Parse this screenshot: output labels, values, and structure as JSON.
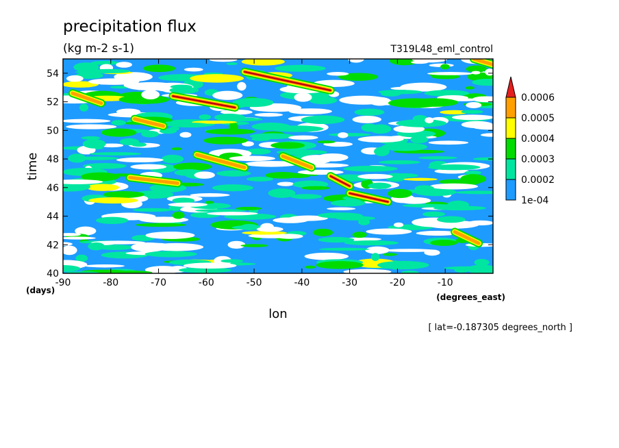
{
  "chart_data": {
    "type": "heatmap",
    "title": "precipitation flux",
    "units": "(kg m-2 s-1)",
    "experiment": "T319L48_eml_control",
    "xlabel": "lon",
    "x_unit": "(degrees_east)",
    "ylabel": "time",
    "y_unit": "(days)",
    "footnote": "[ lat=-0.187305 degrees_north ]",
    "xlim": [
      -90,
      0
    ],
    "ylim": [
      40,
      55
    ],
    "x_ticks": [
      -90,
      -80,
      -70,
      -60,
      -50,
      -40,
      -30,
      -20,
      -10
    ],
    "x_tick_labels": [
      "-90",
      "-80",
      "-70",
      "-60",
      "-50",
      "-40",
      "-30",
      "-20",
      "-10"
    ],
    "y_ticks": [
      40,
      42,
      44,
      46,
      48,
      50,
      52,
      54
    ],
    "y_tick_labels": [
      "40",
      "42",
      "44",
      "46",
      "48",
      "50",
      "52",
      "54"
    ],
    "colorbar": {
      "levels": [
        0.0001,
        0.0002,
        0.0003,
        0.0004,
        0.0005,
        0.0006
      ],
      "labels": [
        "1e-04",
        "0.0002",
        "0.0003",
        "0.0004",
        "0.0005",
        "0.0006"
      ],
      "colors": [
        "#1e9bff",
        "#00e6a0",
        "#00dc00",
        "#ffff00",
        "#ffa000",
        "#e61e1e"
      ],
      "extend": "max"
    },
    "features": [
      {
        "kind": "rain-band",
        "lon_start": -67,
        "t_start": 52.4,
        "lon_end": -54,
        "t_end": 51.6,
        "level": 5
      },
      {
        "kind": "rain-band",
        "lon_start": -52,
        "t_start": 54.1,
        "lon_end": -34,
        "t_end": 52.8,
        "level": 5
      },
      {
        "kind": "rain-band",
        "lon_start": -62,
        "t_start": 48.3,
        "lon_end": -52,
        "t_end": 47.4,
        "level": 3
      },
      {
        "kind": "rain-band",
        "lon_start": -44,
        "t_start": 48.2,
        "lon_end": -38,
        "t_end": 47.4,
        "level": 3
      },
      {
        "kind": "rain-band",
        "lon_start": -34,
        "t_start": 46.8,
        "lon_end": -30,
        "t_end": 46.1,
        "level": 5
      },
      {
        "kind": "rain-band",
        "lon_start": -30,
        "t_start": 45.6,
        "lon_end": -22,
        "t_end": 45.0,
        "level": 5
      },
      {
        "kind": "rain-band",
        "lon_start": -88,
        "t_start": 52.6,
        "lon_end": -82,
        "t_end": 51.9,
        "level": 3
      },
      {
        "kind": "rain-band",
        "lon_start": -75,
        "t_start": 50.8,
        "lon_end": -69,
        "t_end": 50.3,
        "level": 3
      },
      {
        "kind": "rain-band",
        "lon_start": -76,
        "t_start": 46.7,
        "lon_end": -66,
        "t_end": 46.3,
        "level": 3
      },
      {
        "kind": "rain-band",
        "lon_start": -8,
        "t_start": 42.9,
        "lon_end": -3,
        "t_end": 42.1,
        "level": 3
      },
      {
        "kind": "rain-band",
        "lon_start": -4,
        "t_start": 55.0,
        "lon_end": 0,
        "t_end": 54.6,
        "level": 3
      }
    ]
  }
}
